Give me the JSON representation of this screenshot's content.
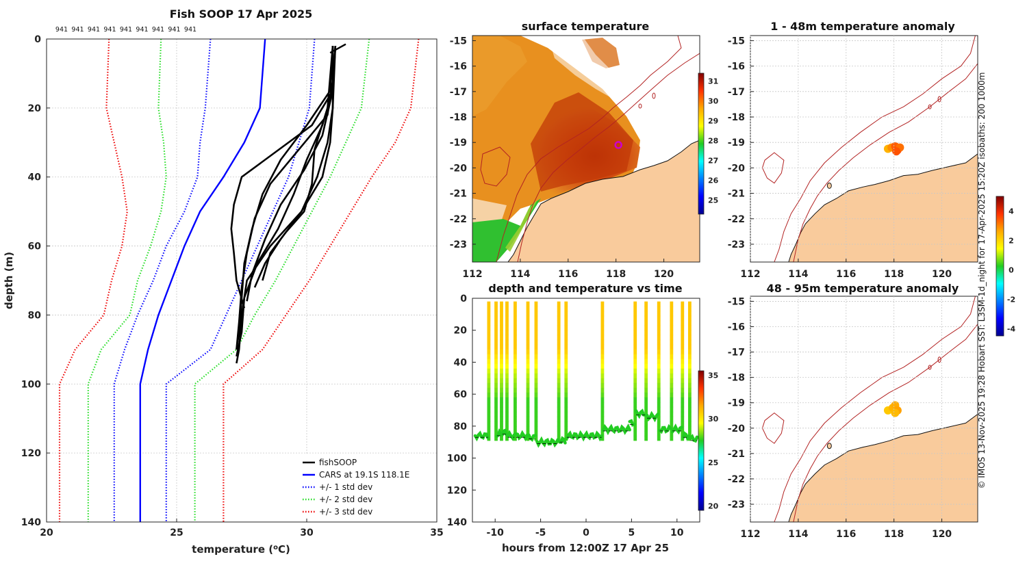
{
  "colors": {
    "fishsoop": "#000000",
    "cars": "#0000ff",
    "std1": "#0000ff",
    "std2": "#22dd22",
    "std3": "#ee0000",
    "land": "#f9cb9c",
    "isobath": "#b22222"
  },
  "chart_data": [
    {
      "id": "profile",
      "type": "line",
      "title": "Fish SOOP 17 Apr 2025",
      "top_labels": [
        "941",
        "941",
        "941",
        "941",
        "941",
        "941",
        "941",
        "941",
        "941"
      ],
      "xlabel_prefix": "temperature (",
      "xlabel_sup": "o",
      "xlabel_suffix": "C)",
      "ylabel": "depth (m)",
      "xlim": [
        20,
        35
      ],
      "ylim": [
        140,
        0
      ],
      "xticks": [
        "20",
        "25",
        "30",
        "35"
      ],
      "yticks": [
        "0",
        "20",
        "40",
        "60",
        "80",
        "100",
        "120",
        "140"
      ],
      "legend": [
        {
          "label": "fishSOOP",
          "style": "solid",
          "color": "#000000"
        },
        {
          "label": "CARS at 19.1S 118.1E",
          "style": "solid",
          "color": "#0000ff"
        },
        {
          "label": "+/- 1 std dev",
          "style": "dotted",
          "color": "#0000ff"
        },
        {
          "label": "+/- 2 std dev",
          "style": "dotted",
          "color": "#22dd22"
        },
        {
          "label": "+/- 3 std dev",
          "style": "dotted",
          "color": "#ee0000"
        }
      ],
      "depth": [
        0,
        20,
        30,
        40,
        50,
        60,
        70,
        80,
        90,
        100,
        140
      ],
      "cars": [
        28.4,
        28.2,
        27.6,
        26.8,
        25.9,
        25.3,
        24.8,
        24.3,
        23.9,
        23.6,
        23.6
      ],
      "std1_low": [
        26.3,
        26.1,
        25.9,
        25.8,
        25.3,
        24.6,
        24.1,
        23.5,
        23.0,
        22.6,
        22.6
      ],
      "std1_high": [
        30.3,
        30.1,
        29.7,
        29.3,
        28.7,
        28.1,
        27.5,
        26.9,
        26.3,
        24.6,
        24.6
      ],
      "std2_low": [
        24.4,
        24.3,
        24.5,
        24.6,
        24.4,
        24.0,
        23.5,
        23.2,
        22.1,
        21.6,
        21.6
      ],
      "std2_high": [
        32.4,
        32.1,
        31.5,
        30.9,
        30.2,
        29.5,
        28.8,
        28.0,
        27.3,
        25.7,
        25.7
      ],
      "std3_low": [
        22.4,
        22.3,
        22.6,
        22.9,
        23.1,
        22.9,
        22.5,
        22.2,
        21.1,
        20.5,
        20.5
      ],
      "std3_high": [
        34.3,
        34.0,
        33.4,
        32.5,
        31.7,
        30.9,
        30.1,
        29.2,
        28.3,
        26.8,
        26.8
      ],
      "fishsoop_casts": [
        {
          "depth": [
            2,
            10,
            20,
            30,
            40,
            50,
            60,
            70,
            80,
            90,
            94
          ],
          "temp": [
            31.0,
            31.0,
            31.0,
            30.9,
            30.6,
            29.8,
            28.6,
            27.7,
            27.5,
            27.4,
            27.3
          ]
        },
        {
          "depth": [
            2,
            15,
            25,
            35,
            45,
            55,
            65,
            75,
            85,
            92
          ],
          "temp": [
            31.0,
            31.0,
            30.6,
            30.0,
            29.5,
            28.9,
            28.1,
            27.6,
            27.5,
            27.3
          ]
        },
        {
          "depth": [
            2,
            15,
            25,
            35,
            45,
            55,
            65,
            75,
            85,
            90
          ],
          "temp": [
            31.0,
            30.9,
            30.0,
            29.0,
            28.3,
            27.9,
            27.6,
            27.5,
            27.4,
            27.3
          ]
        },
        {
          "depth": [
            2,
            12,
            22,
            32,
            42,
            52,
            62,
            72,
            82,
            90
          ],
          "temp": [
            31.0,
            31.0,
            30.8,
            29.7,
            28.6,
            28.0,
            27.7,
            27.5,
            27.4,
            27.3
          ]
        },
        {
          "depth": [
            2,
            15,
            25,
            35,
            40,
            48,
            55,
            62,
            70,
            78
          ],
          "temp": [
            31.1,
            31.0,
            30.2,
            28.4,
            27.5,
            27.2,
            27.1,
            27.2,
            27.3,
            27.6
          ]
        },
        {
          "depth": [
            2,
            15,
            28,
            38,
            48,
            58,
            68,
            76
          ],
          "temp": [
            31.1,
            31.0,
            30.6,
            29.9,
            29.0,
            28.4,
            27.9,
            27.7
          ]
        },
        {
          "depth": [
            2,
            20,
            30,
            40,
            50,
            58,
            65,
            72
          ],
          "temp": [
            31.1,
            31.0,
            30.8,
            30.4,
            29.8,
            29.0,
            28.4,
            28.0
          ]
        },
        {
          "depth": [
            2,
            20,
            32,
            42,
            50,
            56,
            62,
            70
          ],
          "temp": [
            31.0,
            30.8,
            30.3,
            30.2,
            29.9,
            29.2,
            28.6,
            28.3
          ]
        }
      ]
    },
    {
      "id": "sst",
      "type": "heatmap",
      "title": "surface temperature",
      "xticks": [
        "112",
        "114",
        "116",
        "118",
        "120"
      ],
      "yticks": [
        "-15",
        "-16",
        "-17",
        "-18",
        "-19",
        "-20",
        "-21",
        "-22",
        "-23"
      ],
      "xlim": [
        112,
        121.5
      ],
      "ylim": [
        -23.7,
        -14.8
      ],
      "colorbar_ticks": [
        "25",
        "26",
        "27",
        "28",
        "29",
        "30",
        "31"
      ],
      "colorbar_range": [
        24.3,
        31.4
      ],
      "marker": {
        "lon": 118.1,
        "lat": -19.1,
        "color": "#cc00cc"
      }
    },
    {
      "id": "timeseries",
      "type": "scatter",
      "title": "depth and temperature vs time",
      "xlabel": "hours from 12:00Z 17 Apr 25",
      "xticks": [
        "-10",
        "-5",
        "0",
        "5",
        "10"
      ],
      "yticks": [
        "0",
        "20",
        "40",
        "60",
        "80",
        "100",
        "120",
        "140"
      ],
      "xlim": [
        -12.5,
        12.5
      ],
      "ylim": [
        140,
        0
      ],
      "colorbar_ticks": [
        "20",
        "25",
        "30",
        "35"
      ],
      "colorbar_range": [
        19.5,
        35.5
      ],
      "profile_times": [
        -10.7,
        -9.9,
        -9.3,
        -8.7,
        -7.8,
        -6.4,
        -5.5,
        -3.0,
        -2.2,
        1.8,
        5.4,
        6.6,
        8.0,
        9.4,
        10.6,
        11.4
      ],
      "bottom_segments": [
        {
          "t0": -12.2,
          "t1": -10.8,
          "d": 86
        },
        {
          "t0": -9.8,
          "t1": -9.4,
          "d": 85
        },
        {
          "t0": -9.2,
          "t1": -8.8,
          "d": 84
        },
        {
          "t0": -8.6,
          "t1": -7.9,
          "d": 86
        },
        {
          "t0": -7.7,
          "t1": -6.5,
          "d": 86
        },
        {
          "t0": -6.3,
          "t1": -5.6,
          "d": 87
        },
        {
          "t0": -5.4,
          "t1": -3.1,
          "d": 90
        },
        {
          "t0": -2.9,
          "t1": -2.3,
          "d": 89
        },
        {
          "t0": -2.1,
          "t1": 1.7,
          "d": 86
        },
        {
          "t0": 1.9,
          "t1": 4.8,
          "d": 82
        },
        {
          "t0": 4.8,
          "t1": 5.3,
          "d": 78
        },
        {
          "t0": 5.5,
          "t1": 6.5,
          "d": 72
        },
        {
          "t0": 6.7,
          "t1": 7.9,
          "d": 74
        },
        {
          "t0": 8.1,
          "t1": 9.3,
          "d": 82
        },
        {
          "t0": 9.5,
          "t1": 10.5,
          "d": 82
        },
        {
          "t0": 10.7,
          "t1": 11.3,
          "d": 86
        },
        {
          "t0": 11.5,
          "t1": 12.2,
          "d": 88
        }
      ]
    },
    {
      "id": "anom1",
      "type": "scatter",
      "title": "1 - 48m temperature anomaly",
      "xticks": [
        "112",
        "114",
        "116",
        "118",
        "120"
      ],
      "yticks": [
        "-15",
        "-16",
        "-17",
        "-18",
        "-19",
        "-20",
        "-21",
        "-22",
        "-23"
      ],
      "xlim": [
        112,
        121.5
      ],
      "ylim": [
        -23.7,
        -14.8
      ],
      "points": [
        {
          "lon": 117.75,
          "lat": -19.25,
          "anom": 2.5
        },
        {
          "lon": 117.9,
          "lat": -19.2,
          "anom": 2.9
        },
        {
          "lon": 118.05,
          "lat": -19.15,
          "anom": 3.4
        },
        {
          "lon": 118.15,
          "lat": -19.3,
          "anom": 3.6
        },
        {
          "lon": 118.25,
          "lat": -19.2,
          "anom": 3.2
        },
        {
          "lon": 118.1,
          "lat": -19.35,
          "anom": 3.5
        }
      ]
    },
    {
      "id": "anom2",
      "type": "scatter",
      "title": "48 - 95m temperature anomaly",
      "xticks": [
        "112",
        "114",
        "116",
        "118",
        "120"
      ],
      "yticks": [
        "-15",
        "-16",
        "-17",
        "-18",
        "-19",
        "-20",
        "-21",
        "-22",
        "-23"
      ],
      "xlim": [
        112,
        121.5
      ],
      "ylim": [
        -23.7,
        -14.8
      ],
      "points": [
        {
          "lon": 117.75,
          "lat": -19.3,
          "anom": 2.2
        },
        {
          "lon": 117.95,
          "lat": -19.2,
          "anom": 2.5
        },
        {
          "lon": 118.05,
          "lat": -19.1,
          "anom": 2.6
        },
        {
          "lon": 118.15,
          "lat": -19.3,
          "anom": 2.7
        },
        {
          "lon": 118.05,
          "lat": -19.4,
          "anom": 2.4
        }
      ]
    },
    {
      "id": "anom_colorbar",
      "type": "colorbar",
      "ticks": [
        "-4",
        "-2",
        "0",
        "2",
        "4"
      ],
      "range": [
        -4.5,
        5
      ]
    }
  ],
  "credit": "© IMOS 13-Nov-2025 19:28 Hobart SST: L3SM-1d_night for 17-Apr-2025 15:20Z isobaths: 200  1000m"
}
